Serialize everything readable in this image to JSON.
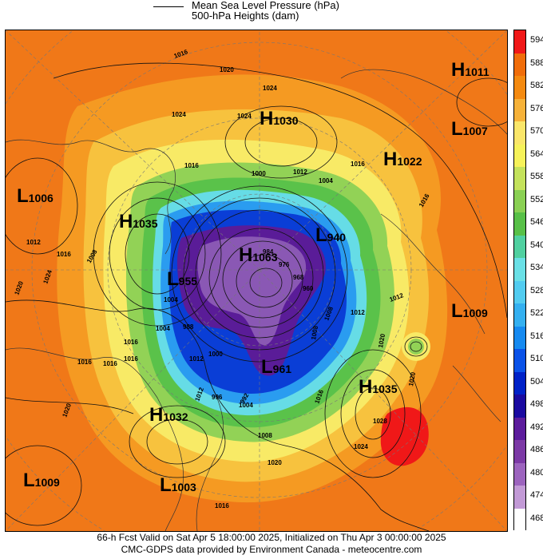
{
  "header": {
    "line1": "Mean Sea Level Pressure (hPa)",
    "line2": "500-hPa Heights (dam)"
  },
  "colorbar": {
    "values": [
      "594",
      "588",
      "582",
      "576",
      "570",
      "564",
      "558",
      "552",
      "546",
      "540",
      "534",
      "528",
      "522",
      "516",
      "510",
      "504",
      "498",
      "492",
      "486",
      "480",
      "474",
      "468"
    ],
    "colors": [
      "#f01818",
      "#f06d0a",
      "#f48a10",
      "#f6b23a",
      "#fae66a",
      "#f6f25a",
      "#c4e25c",
      "#8ad054",
      "#58c048",
      "#50d0a0",
      "#6ae0e6",
      "#52ccf0",
      "#34b0f0",
      "#168af0",
      "#0a52e8",
      "#0022c8",
      "#1a0aa0",
      "#5c1c9c",
      "#7c3aa6",
      "#9c64be",
      "#c29ad6",
      "#ffffff"
    ]
  },
  "pressure_labels": [
    {
      "letter": "H",
      "value": "1011"
    },
    {
      "letter": "H",
      "value": "1030"
    },
    {
      "letter": "L",
      "value": "1007"
    },
    {
      "letter": "H",
      "value": "1022"
    },
    {
      "letter": "L",
      "value": "1006"
    },
    {
      "letter": "H",
      "value": "1035"
    },
    {
      "letter": "L",
      "value": "940"
    },
    {
      "letter": "H",
      "value": "1063"
    },
    {
      "letter": "L",
      "value": "955"
    },
    {
      "letter": "L",
      "value": "1009"
    },
    {
      "letter": "L",
      "value": "961"
    },
    {
      "letter": "H",
      "value": "1035"
    },
    {
      "letter": "H",
      "value": "1032"
    },
    {
      "letter": "L",
      "value": "1009"
    },
    {
      "letter": "L",
      "value": "1003"
    }
  ],
  "isobar_labels": [
    "1016",
    "1020",
    "1024",
    "1024",
    "1024",
    "1016",
    "1000",
    "1012",
    "1004",
    "1016",
    "1016",
    "1012",
    "1016",
    "1008",
    "1024",
    "1020",
    "1004",
    "988",
    "1016",
    "1012",
    "1000",
    "1012",
    "1016",
    "1020",
    "1016",
    "1020",
    "1012",
    "1004",
    "996",
    "1008",
    "1016",
    "992",
    "1008",
    "1008",
    "1028",
    "1024",
    "1020",
    "1016",
    "1016",
    "984",
    "976",
    "968",
    "960",
    "1012",
    "1004",
    "1020"
  ],
  "footer": {
    "line1": "66-h Fcst Valid on Sat Apr  5 18:00:00 2025, Initialized on Thu Apr  3 00:00:00 2025",
    "line2": "CMC-GDPS data provided by Environment Canada - meteocentre.com"
  }
}
